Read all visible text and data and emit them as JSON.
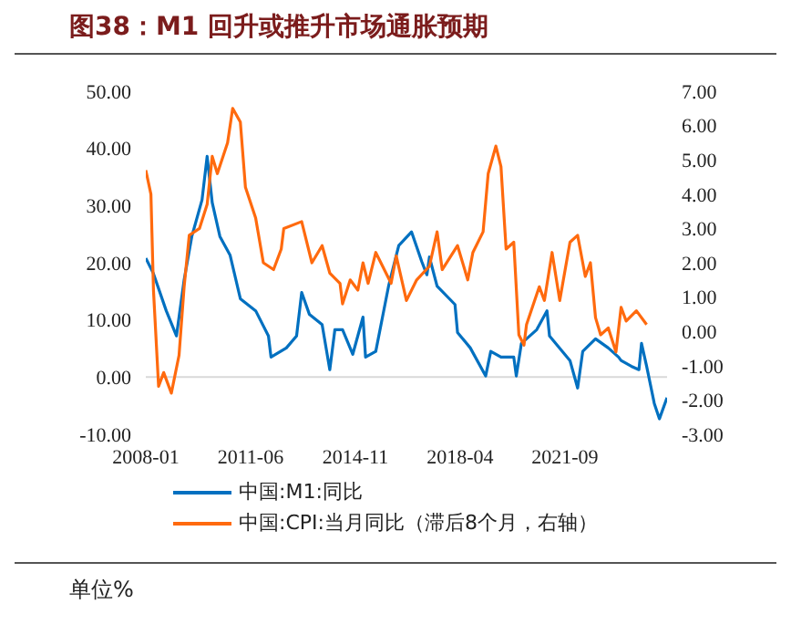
{
  "chart_data": {
    "type": "line",
    "title": "图38：M1 回升或推升市场通胀预期",
    "annotations": [
      "单位%"
    ],
    "xlim": [
      "2008-01",
      "2025-01"
    ],
    "xticks": [
      "2008-01",
      "2011-06",
      "2014-11",
      "2018-04",
      "2021-09"
    ],
    "ylim": [
      -10,
      50
    ],
    "yticks": [
      {
        "value": -10,
        "label": "-10.00"
      },
      {
        "value": 0,
        "label": "0.00"
      },
      {
        "value": 10,
        "label": "10.00"
      },
      {
        "value": 20,
        "label": "20.00"
      },
      {
        "value": 30,
        "label": "30.00"
      },
      {
        "value": 40,
        "label": "40.00"
      },
      {
        "value": 50,
        "label": "50.00"
      }
    ],
    "y2lim": [
      -3,
      7
    ],
    "y2ticks": [
      {
        "value": -3,
        "label": "-3.00"
      },
      {
        "value": -2,
        "label": "-2.00"
      },
      {
        "value": -1,
        "label": "-1.00"
      },
      {
        "value": 0,
        "label": "0.00"
      },
      {
        "value": 1,
        "label": "1.00"
      },
      {
        "value": 2,
        "label": "2.00"
      },
      {
        "value": 3,
        "label": "3.00"
      },
      {
        "value": 4,
        "label": "4.00"
      },
      {
        "value": 5,
        "label": "5.00"
      },
      {
        "value": 6,
        "label": "6.00"
      },
      {
        "value": 7,
        "label": "7.00"
      }
    ],
    "ref_lines": [
      {
        "axis": "y",
        "value": 0,
        "color": "#d9d9d9"
      }
    ],
    "legend": "bottom",
    "grid": false,
    "marker": "none",
    "line_style": "solid",
    "series": [
      {
        "name": "中国:M1:同比",
        "color": "#0070c0",
        "x": [
          "2008-01",
          "2008-04",
          "2008-09",
          "2009-01",
          "2009-04",
          "2009-07",
          "2009-11",
          "2010-01",
          "2010-03",
          "2010-06",
          "2010-10",
          "2011-02",
          "2011-08",
          "2012-01",
          "2012-02",
          "2012-08",
          "2012-12",
          "2013-02",
          "2013-05",
          "2013-10",
          "2014-01",
          "2014-03",
          "2014-06",
          "2014-10",
          "2015-02",
          "2015-03",
          "2015-07",
          "2015-12",
          "2016-04",
          "2016-09",
          "2017-01",
          "2017-03",
          "2017-04",
          "2017-07",
          "2018-02",
          "2018-03",
          "2018-08",
          "2019-02",
          "2019-04",
          "2019-08",
          "2020-01",
          "2020-02",
          "2020-04",
          "2020-10",
          "2021-02",
          "2021-03",
          "2021-11",
          "2022-02",
          "2022-04",
          "2022-09",
          "2023-02",
          "2023-06",
          "2023-07",
          "2023-11",
          "2024-02",
          "2024-03",
          "2024-05",
          "2024-08",
          "2024-10",
          "2025-01"
        ],
        "values": [
          20.8,
          18.1,
          11.6,
          7.2,
          17,
          24.6,
          31,
          38.6,
          30.5,
          24.6,
          21.3,
          13.7,
          11.6,
          7.2,
          3.5,
          5.1,
          7.2,
          14.8,
          11,
          9.2,
          1.3,
          8.3,
          8.3,
          4,
          10.5,
          3.5,
          4.5,
          15.9,
          23,
          25.4,
          20.2,
          17.9,
          21,
          15.9,
          12.7,
          7.8,
          5.1,
          0.2,
          4.5,
          3.5,
          3.5,
          0.2,
          5.9,
          8.3,
          11.6,
          7.2,
          2.9,
          -1.9,
          4.5,
          6.7,
          5.1,
          3.5,
          2.9,
          1.9,
          1.3,
          5.9,
          1.9,
          -4.6,
          -7.3,
          -3.6
        ]
      },
      {
        "name": "中国:CPI:当月同比（滞后8个月，右轴）",
        "color": "#ff6a0e",
        "axis": "y2",
        "x": [
          "2008-01",
          "2008-03",
          "2008-04",
          "2008-06",
          "2008-08",
          "2008-11",
          "2009-02",
          "2009-04",
          "2009-06",
          "2009-10",
          "2010-01",
          "2010-03",
          "2010-05",
          "2010-09",
          "2010-11",
          "2011-02",
          "2011-04",
          "2011-08",
          "2011-11",
          "2012-03",
          "2012-06",
          "2012-07",
          "2013-02",
          "2013-06",
          "2013-10",
          "2014-01",
          "2014-05",
          "2014-06",
          "2014-09",
          "2014-12",
          "2015-02",
          "2015-04",
          "2015-07",
          "2016-01",
          "2016-03",
          "2016-07",
          "2016-11",
          "2017-04",
          "2017-07",
          "2017-09",
          "2018-03",
          "2018-07",
          "2018-09",
          "2019-01",
          "2019-03",
          "2019-06",
          "2019-08",
          "2019-10",
          "2020-01",
          "2020-03",
          "2020-05",
          "2020-06",
          "2020-11",
          "2021-01",
          "2021-04",
          "2021-07",
          "2021-11",
          "2022-02",
          "2022-05",
          "2022-07",
          "2022-09",
          "2022-11",
          "2023-02",
          "2023-05",
          "2023-07",
          "2023-09",
          "2024-01",
          "2024-05"
        ],
        "values": [
          4.7,
          4,
          1.2,
          -1.6,
          -1.2,
          -1.8,
          -0.7,
          1.3,
          2.8,
          3,
          3.7,
          5.1,
          4.6,
          5.5,
          6.5,
          6.1,
          4.2,
          3.3,
          2,
          1.8,
          2.4,
          3,
          3.2,
          2,
          2.5,
          1.7,
          1.4,
          0.8,
          1.5,
          1.2,
          2,
          1.4,
          2.3,
          1.4,
          2.2,
          0.9,
          1.5,
          1.9,
          2.9,
          1.8,
          2.5,
          1.5,
          2.3,
          2.9,
          4.6,
          5.4,
          4.8,
          2.4,
          2.6,
          -0.1,
          -0.4,
          0.2,
          1.3,
          0.9,
          2.3,
          0.9,
          2.6,
          2.8,
          1.6,
          2,
          0.4,
          -0.1,
          0.1,
          -0.6,
          0.7,
          0.3,
          0.6,
          0.2
        ]
      }
    ]
  }
}
